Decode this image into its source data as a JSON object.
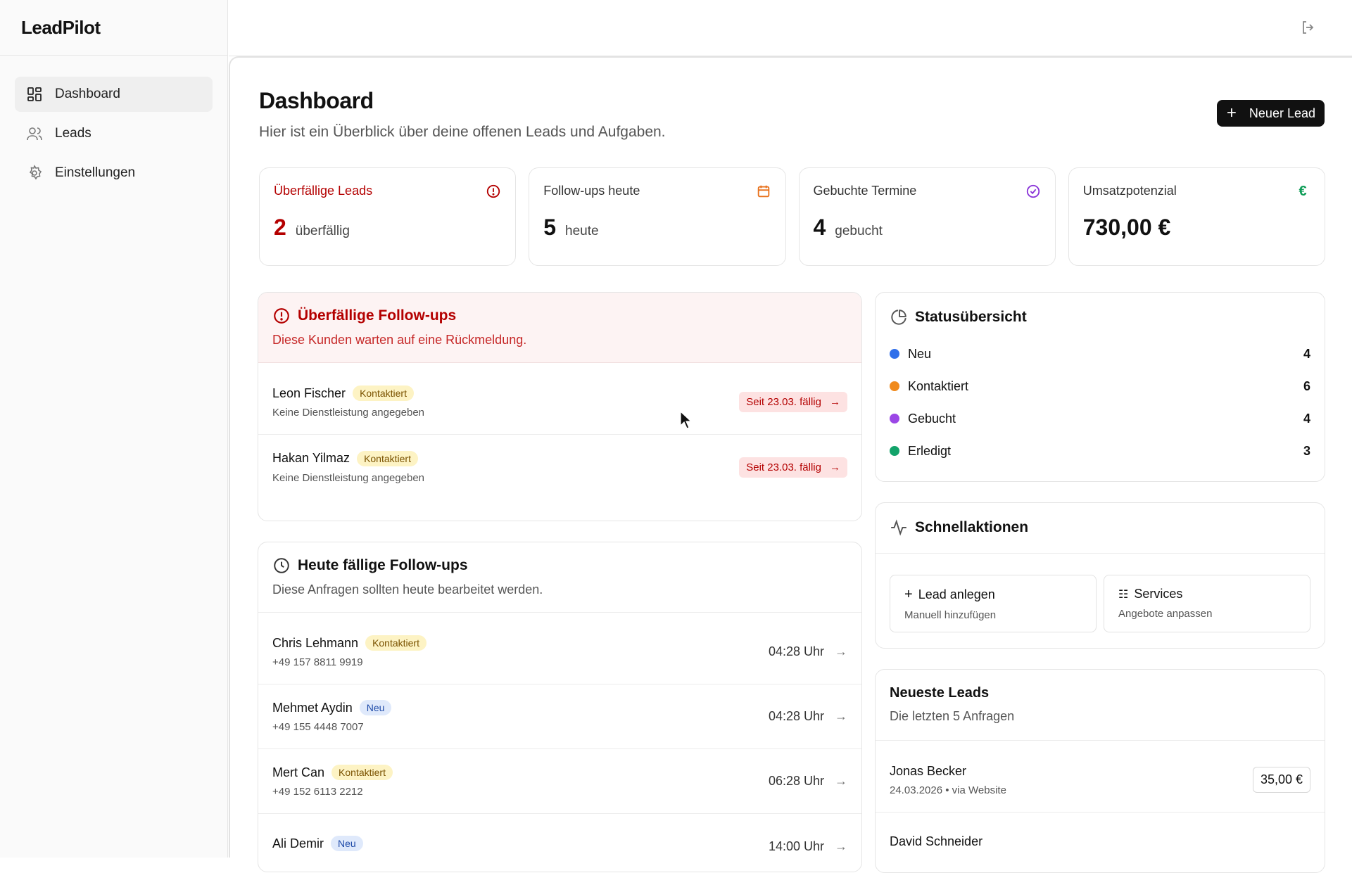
{
  "app": {
    "name": "LeadPilot"
  },
  "sidebar": {
    "items": [
      {
        "label": "Dashboard",
        "icon": "dashboard-icon",
        "active": true
      },
      {
        "label": "Leads",
        "icon": "users-icon",
        "active": false
      },
      {
        "label": "Einstellungen",
        "icon": "gear-icon",
        "active": false
      }
    ]
  },
  "header": {
    "title": "Dashboard",
    "subtitle": "Hier ist ein Überblick über deine offenen Leads und Aufgaben.",
    "new_lead_label": "Neuer Lead"
  },
  "stats": [
    {
      "label": "Überfällige Leads",
      "value": "2",
      "unit": "überfällig",
      "icon": "alert-circle-icon",
      "color": "#b40000"
    },
    {
      "label": "Follow-ups heute",
      "value": "5",
      "unit": "heute",
      "icon": "calendar-icon",
      "color": "#e8711c"
    },
    {
      "label": "Gebuchte Termine",
      "value": "4",
      "unit": "gebucht",
      "icon": "check-circle-icon",
      "color": "#8a35d8"
    },
    {
      "label": "Umsatzpotenzial",
      "value": "730,00 €",
      "unit": "",
      "icon": "euro-icon",
      "color": "#0f9d58"
    }
  ],
  "overdue": {
    "title": "Überfällige Follow-ups",
    "subtitle": "Diese Kunden warten auf eine Rückmeldung.",
    "rows": [
      {
        "name": "Leon Fischer",
        "badge": "Kontaktiert",
        "sub": "Keine Dienstleistung angegeben",
        "due": "Seit 23.03. fällig"
      },
      {
        "name": "Hakan Yilmaz",
        "badge": "Kontaktiert",
        "sub": "Keine Dienstleistung angegeben",
        "due": "Seit 23.03. fällig"
      }
    ]
  },
  "today": {
    "title": "Heute fällige Follow-ups",
    "subtitle": "Diese Anfragen sollten heute bearbeitet werden.",
    "rows": [
      {
        "name": "Chris Lehmann",
        "badge": "Kontaktiert",
        "phone": "+49 157 8811 9919",
        "time": "04:28 Uhr"
      },
      {
        "name": "Mehmet Aydin",
        "badge": "Neu",
        "phone": "+49 155 4448 7007",
        "time": "04:28 Uhr"
      },
      {
        "name": "Mert Can",
        "badge": "Kontaktiert",
        "phone": "+49 152 6113 2212",
        "time": "06:28 Uhr"
      },
      {
        "name": "Ali Demir",
        "badge": "Neu",
        "phone": "",
        "time": "14:00 Uhr"
      }
    ]
  },
  "status": {
    "title": "Statusübersicht",
    "items": [
      {
        "label": "Neu",
        "count": "4",
        "color": "#2f6fea"
      },
      {
        "label": "Kontaktiert",
        "count": "6",
        "color": "#f08a1c"
      },
      {
        "label": "Gebucht",
        "count": "4",
        "color": "#9b47e6"
      },
      {
        "label": "Erledigt",
        "count": "3",
        "color": "#12a36a"
      }
    ]
  },
  "quick": {
    "title": "Schnellaktionen",
    "actions": [
      {
        "title": "Lead anlegen",
        "sub": "Manuell hinzufügen"
      },
      {
        "title": "Services",
        "sub": "Angebote anpassen"
      }
    ]
  },
  "newest": {
    "title": "Neueste Leads",
    "subtitle": "Die letzten 5 Anfragen",
    "rows": [
      {
        "name": "Jonas Becker",
        "meta": "24.03.2026 • via Website",
        "price": "35,00 €"
      },
      {
        "name": "David Schneider",
        "meta": "",
        "price": ""
      }
    ]
  }
}
